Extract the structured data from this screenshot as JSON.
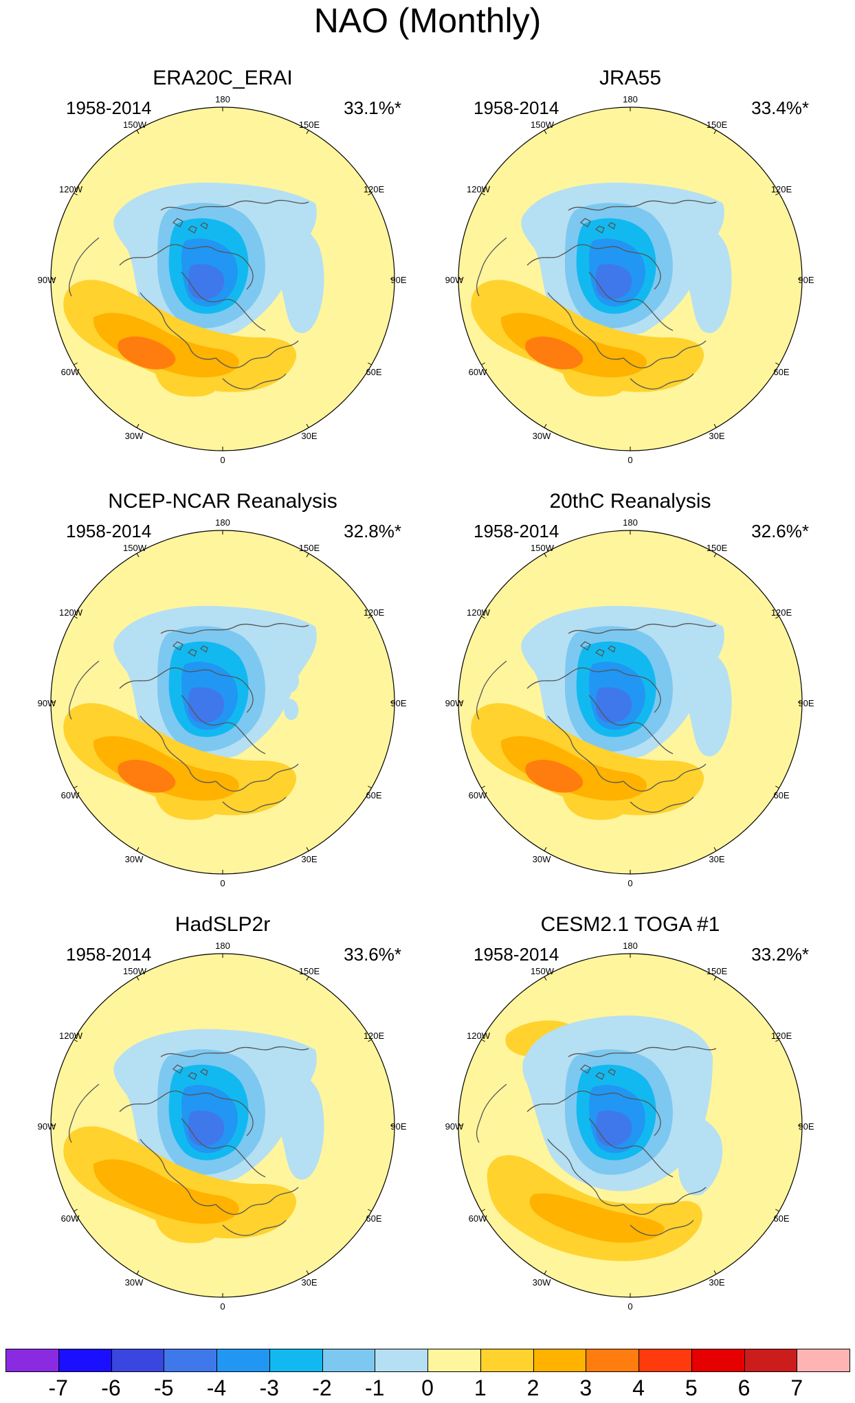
{
  "title": "NAO (Monthly)",
  "panels": [
    {
      "title": "ERA20C_ERAI",
      "period": "1958-2014",
      "variance": "33.1%*",
      "variant": "era20c",
      "cesm": false
    },
    {
      "title": "JRA55",
      "period": "1958-2014",
      "variance": "33.4%*",
      "variant": "jra55",
      "cesm": false
    },
    {
      "title": "NCEP-NCAR Reanalysis",
      "period": "1958-2014",
      "variance": "32.8%*",
      "variant": "ncep",
      "cesm": false
    },
    {
      "title": "20thC Reanalysis",
      "period": "1958-2014",
      "variance": "32.6%*",
      "variant": "c20",
      "cesm": false
    },
    {
      "title": "HadSLP2r",
      "period": "1958-2014",
      "variance": "33.6%*",
      "variant": "hadslp",
      "cesm": false
    },
    {
      "title": "CESM2.1 TOGA #1",
      "period": "1958-2014",
      "variance": "33.2%*",
      "variant": "cesm",
      "cesm": true
    }
  ],
  "longitude_labels": [
    "180",
    "150E",
    "120E",
    "90E",
    "60E",
    "30E",
    "0",
    "30W",
    "60W",
    "90W",
    "120W",
    "150W"
  ],
  "colorbar": {
    "labels": [
      "-7",
      "-6",
      "-5",
      "-4",
      "-3",
      "-2",
      "-1",
      "0",
      "1",
      "2",
      "3",
      "4",
      "5",
      "6",
      "7"
    ],
    "colors": [
      "#8a2be2",
      "#1a10ff",
      "#3a46e0",
      "#3f78ea",
      "#2196f3",
      "#12b9f0",
      "#7dc8f0",
      "#b5dff3",
      "#fff59d",
      "#ffd22e",
      "#ffb200",
      "#ff7d0f",
      "#ff3a0c",
      "#e60000",
      "#cc1d1d",
      "#ffb4b4"
    ]
  }
}
